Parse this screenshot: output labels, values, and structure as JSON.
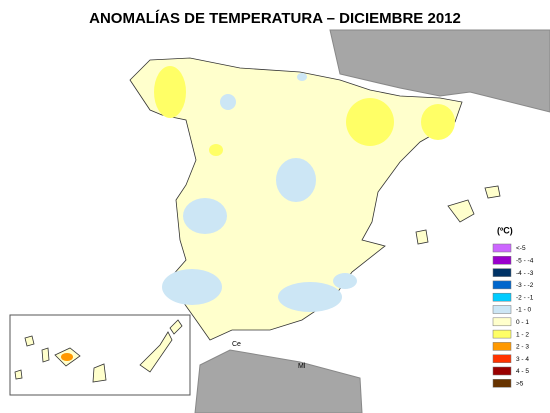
{
  "header": {
    "title": "ANOMALÍAS DE TEMPERATURA – DICIEMBRE 2012"
  },
  "legend": {
    "title": "(ºC)",
    "items": [
      {
        "label": "<-5",
        "color": "#cc66ff"
      },
      {
        "label": "-5 - -4",
        "color": "#9900cc"
      },
      {
        "label": "-4 - -3",
        "color": "#003366"
      },
      {
        "label": "-3 - -2",
        "color": "#0066cc"
      },
      {
        "label": "-2 - -1",
        "color": "#00ccff"
      },
      {
        "label": "-1 - 0",
        "color": "#cce6f5"
      },
      {
        "label": "0 - 1",
        "color": "#ffffcc"
      },
      {
        "label": "1 - 2",
        "color": "#ffff66"
      },
      {
        "label": "2 - 3",
        "color": "#ff9900"
      },
      {
        "label": "3 - 4",
        "color": "#ff3300"
      },
      {
        "label": "4 - 5",
        "color": "#990000"
      },
      {
        "label": ">5",
        "color": "#663300"
      }
    ]
  },
  "places": {
    "ceuta": "Ce",
    "melilla": "Ml"
  }
}
